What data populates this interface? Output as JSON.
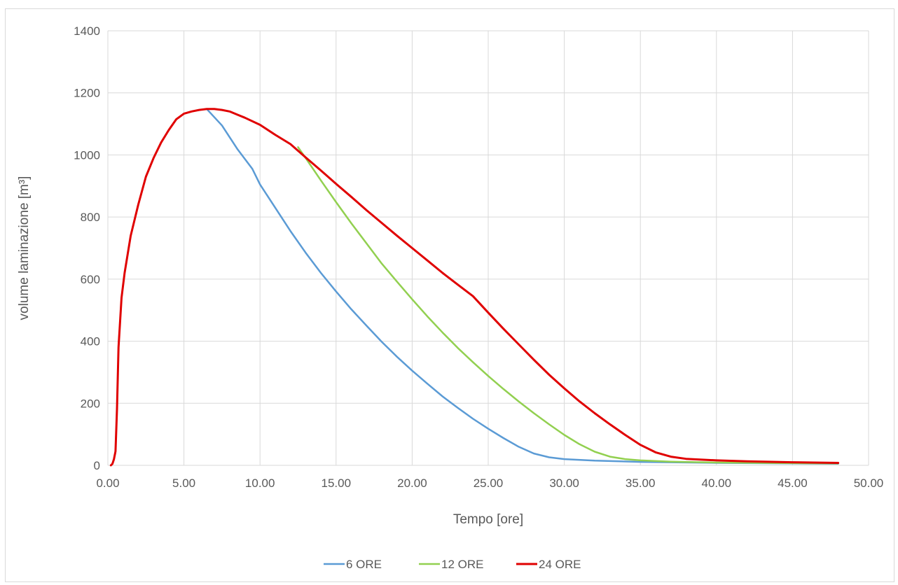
{
  "chart_data": {
    "type": "line",
    "title": "",
    "xlabel": "Tempo [ore]",
    "ylabel": "volume laminazione [m³]",
    "xlim": [
      0,
      50
    ],
    "ylim": [
      0,
      1400
    ],
    "x_ticks": [
      "0.00",
      "5.00",
      "10.00",
      "15.00",
      "20.00",
      "25.00",
      "30.00",
      "35.00",
      "40.00",
      "45.00",
      "50.00"
    ],
    "y_ticks": [
      "0",
      "200",
      "400",
      "600",
      "800",
      "1000",
      "1200",
      "1400"
    ],
    "grid": true,
    "legend_position": "bottom",
    "series": [
      {
        "name": "6 ORE",
        "color": "#5b9bd5",
        "points": [
          [
            6.5,
            1148
          ],
          [
            7.5,
            1095
          ],
          [
            8.5,
            1020
          ],
          [
            9.5,
            955
          ],
          [
            10,
            905
          ],
          [
            11,
            830
          ],
          [
            12,
            755
          ],
          [
            13,
            685
          ],
          [
            14,
            620
          ],
          [
            15,
            560
          ],
          [
            16,
            503
          ],
          [
            17,
            450
          ],
          [
            18,
            398
          ],
          [
            19,
            350
          ],
          [
            20,
            305
          ],
          [
            21,
            263
          ],
          [
            22,
            222
          ],
          [
            23,
            185
          ],
          [
            24,
            150
          ],
          [
            25,
            118
          ],
          [
            26,
            88
          ],
          [
            27,
            60
          ],
          [
            28,
            38
          ],
          [
            29,
            26
          ],
          [
            30,
            20
          ],
          [
            32,
            15
          ],
          [
            35,
            11
          ],
          [
            40,
            8
          ],
          [
            45,
            6
          ],
          [
            48,
            5
          ]
        ]
      },
      {
        "name": "12 ORE",
        "color": "#92d050",
        "points": [
          [
            12.5,
            1025
          ],
          [
            13,
            990
          ],
          [
            14,
            918
          ],
          [
            15,
            848
          ],
          [
            16,
            780
          ],
          [
            17,
            715
          ],
          [
            18,
            650
          ],
          [
            19,
            592
          ],
          [
            20,
            535
          ],
          [
            21,
            480
          ],
          [
            22,
            428
          ],
          [
            23,
            378
          ],
          [
            24,
            332
          ],
          [
            25,
            288
          ],
          [
            26,
            246
          ],
          [
            27,
            206
          ],
          [
            28,
            168
          ],
          [
            29,
            132
          ],
          [
            30,
            98
          ],
          [
            31,
            68
          ],
          [
            32,
            44
          ],
          [
            33,
            28
          ],
          [
            34,
            20
          ],
          [
            35,
            16
          ],
          [
            37,
            12
          ],
          [
            40,
            9
          ],
          [
            45,
            7
          ],
          [
            48,
            6
          ]
        ]
      },
      {
        "name": "24 ORE",
        "color": "#e00000",
        "points": [
          [
            0.2,
            0
          ],
          [
            0.3,
            5
          ],
          [
            0.4,
            20
          ],
          [
            0.5,
            45
          ],
          [
            0.6,
            180
          ],
          [
            0.7,
            380
          ],
          [
            0.9,
            540
          ],
          [
            1.1,
            620
          ],
          [
            1.5,
            740
          ],
          [
            2,
            840
          ],
          [
            2.5,
            930
          ],
          [
            3,
            990
          ],
          [
            3.5,
            1040
          ],
          [
            4,
            1080
          ],
          [
            4.5,
            1115
          ],
          [
            5,
            1133
          ],
          [
            5.5,
            1140
          ],
          [
            6,
            1145
          ],
          [
            6.5,
            1148
          ],
          [
            7,
            1148
          ],
          [
            7.5,
            1145
          ],
          [
            8,
            1140
          ],
          [
            8.5,
            1130
          ],
          [
            9,
            1120
          ],
          [
            10,
            1097
          ],
          [
            11,
            1065
          ],
          [
            12,
            1035
          ],
          [
            13,
            992
          ],
          [
            14,
            950
          ],
          [
            15,
            907
          ],
          [
            16,
            865
          ],
          [
            17,
            822
          ],
          [
            18,
            781
          ],
          [
            19,
            740
          ],
          [
            20,
            700
          ],
          [
            21,
            660
          ],
          [
            22,
            620
          ],
          [
            23,
            582
          ],
          [
            24,
            545
          ],
          [
            25,
            492
          ],
          [
            26,
            440
          ],
          [
            27,
            390
          ],
          [
            28,
            340
          ],
          [
            29,
            292
          ],
          [
            30,
            248
          ],
          [
            31,
            206
          ],
          [
            32,
            168
          ],
          [
            33,
            132
          ],
          [
            34,
            98
          ],
          [
            35,
            66
          ],
          [
            36,
            42
          ],
          [
            37,
            28
          ],
          [
            38,
            21
          ],
          [
            40,
            16
          ],
          [
            42,
            13
          ],
          [
            45,
            10
          ],
          [
            48,
            8
          ]
        ]
      }
    ]
  }
}
